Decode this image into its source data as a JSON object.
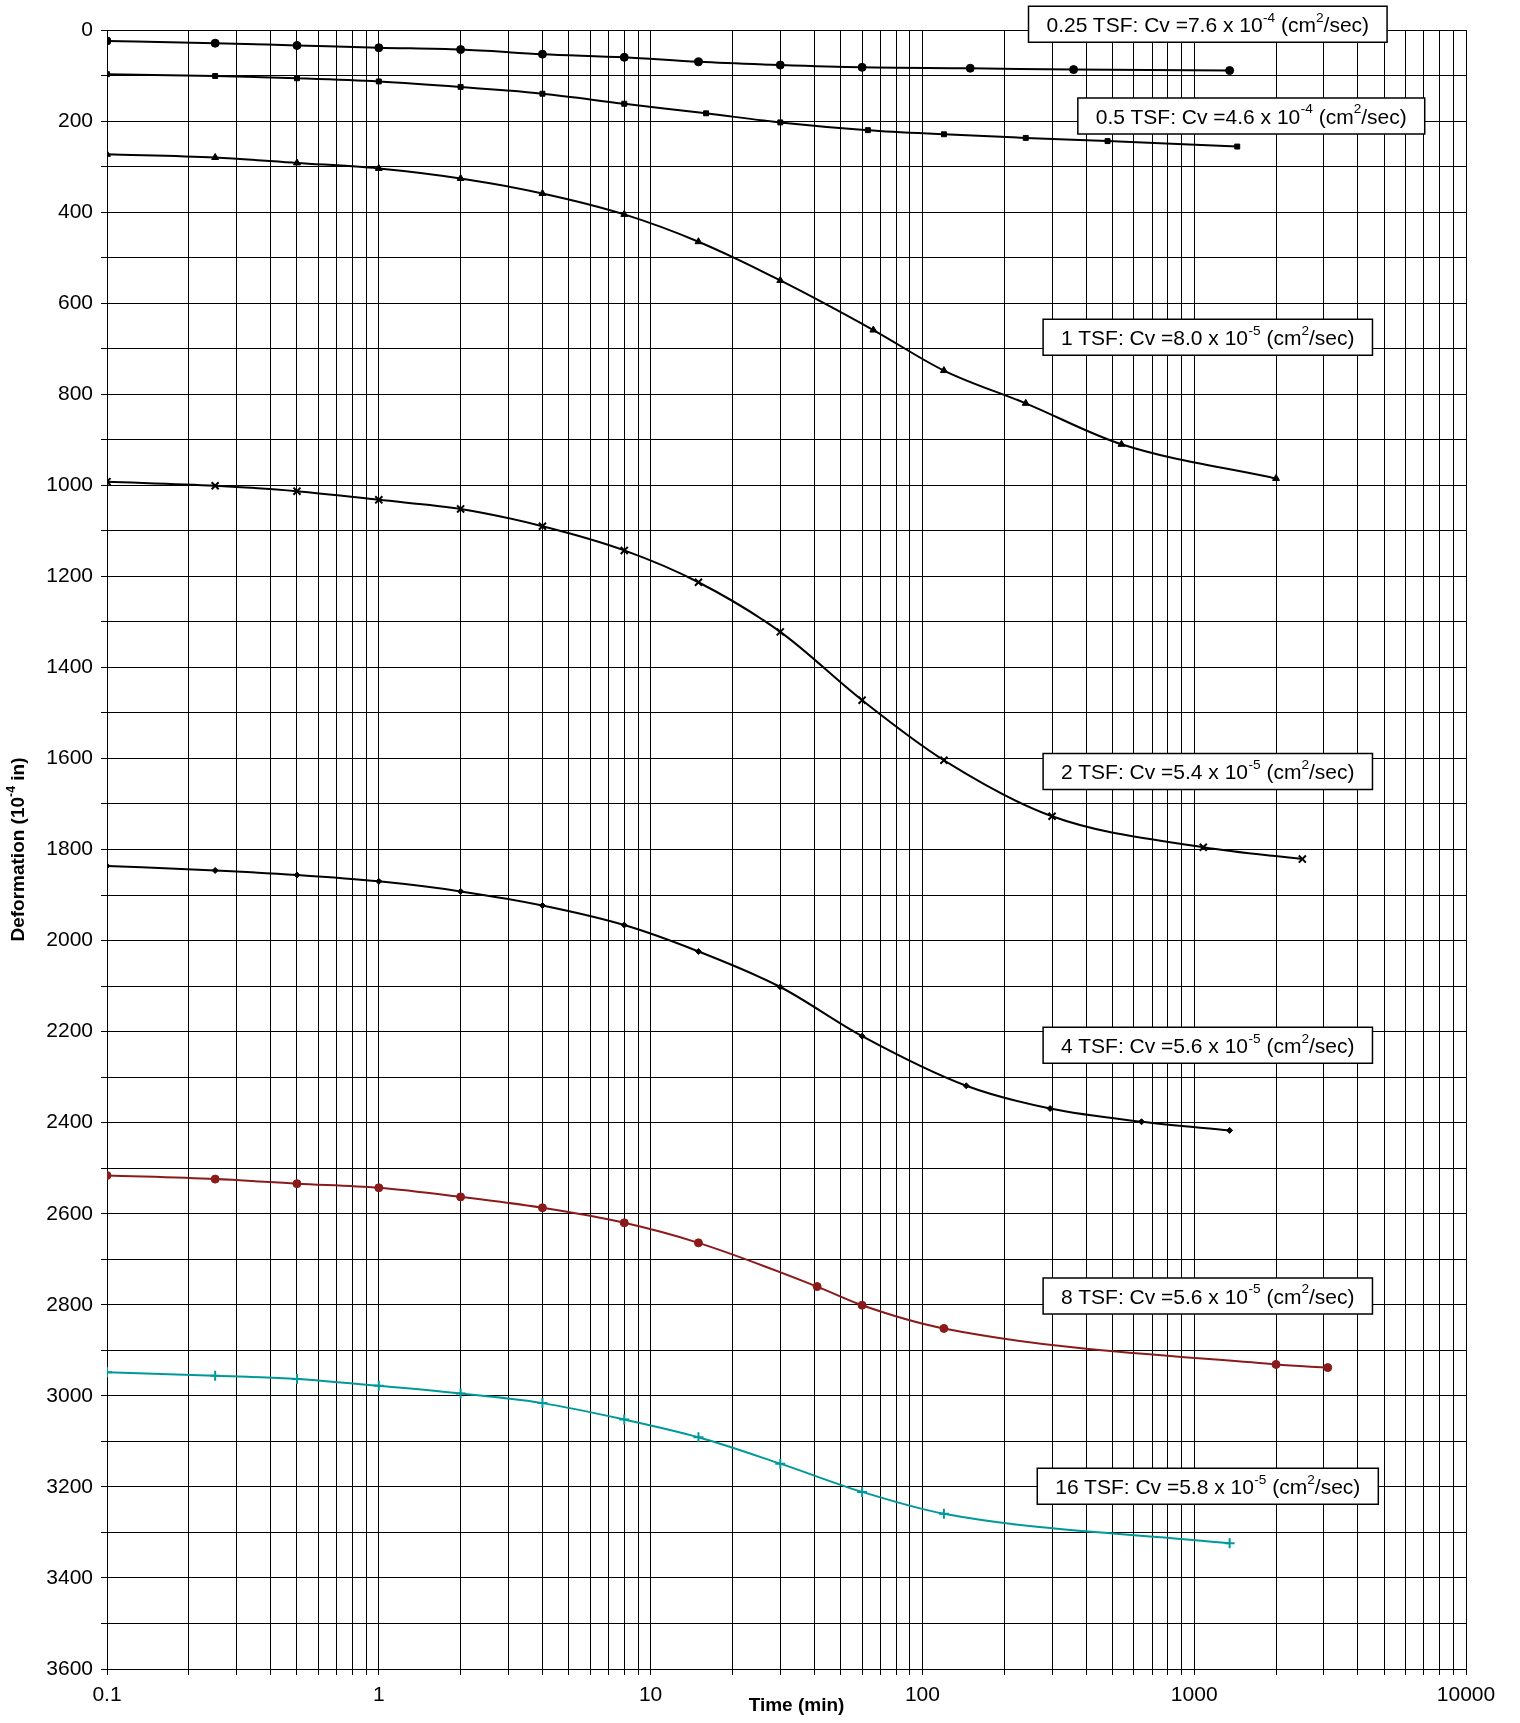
{
  "chart_data": {
    "type": "line",
    "xlabel": "Time (min)",
    "ylabel": "Deformation (10$^{-4}$ in)",
    "log": "x",
    "grid": true,
    "legend": false,
    "line_style": "solid",
    "xlim": [
      0.1,
      10000
    ],
    "ylim": [
      3600,
      0
    ],
    "xticks": [
      0.1,
      {
        "value": 0.2,
        "label": null
      },
      {
        "value": 0.3,
        "label": null
      },
      {
        "value": 0.4,
        "label": null
      },
      {
        "value": 0.5,
        "label": null
      },
      {
        "value": 0.6,
        "label": null
      },
      {
        "value": 0.7,
        "label": null
      },
      {
        "value": 0.8,
        "label": null
      },
      {
        "value": 0.9,
        "label": null
      },
      1,
      {
        "value": 2,
        "label": null
      },
      {
        "value": 3,
        "label": null
      },
      {
        "value": 4,
        "label": null
      },
      {
        "value": 5,
        "label": null
      },
      {
        "value": 6,
        "label": null
      },
      {
        "value": 7,
        "label": null
      },
      {
        "value": 8,
        "label": null
      },
      {
        "value": 9,
        "label": null
      },
      10,
      {
        "value": 20,
        "label": null
      },
      {
        "value": 30,
        "label": null
      },
      {
        "value": 40,
        "label": null
      },
      {
        "value": 50,
        "label": null
      },
      {
        "value": 60,
        "label": null
      },
      {
        "value": 70,
        "label": null
      },
      {
        "value": 80,
        "label": null
      },
      {
        "value": 90,
        "label": null
      },
      100,
      {
        "value": 200,
        "label": null
      },
      {
        "value": 300,
        "label": null
      },
      {
        "value": 400,
        "label": null
      },
      {
        "value": 500,
        "label": null
      },
      {
        "value": 600,
        "label": null
      },
      {
        "value": 700,
        "label": null
      },
      {
        "value": 800,
        "label": null
      },
      {
        "value": 900,
        "label": null
      },
      1000,
      {
        "value": 2000,
        "label": null
      },
      {
        "value": 3000,
        "label": null
      },
      {
        "value": 4000,
        "label": null
      },
      {
        "value": 5000,
        "label": null
      },
      {
        "value": 6000,
        "label": null
      },
      {
        "value": 7000,
        "label": null
      },
      {
        "value": 8000,
        "label": null
      },
      {
        "value": 9000,
        "label": null
      },
      10000
    ],
    "yticks": [
      0,
      {
        "value": 100,
        "label": null
      },
      200,
      {
        "value": 300,
        "label": null
      },
      400,
      {
        "value": 500,
        "label": null
      },
      600,
      {
        "value": 700,
        "label": null
      },
      800,
      {
        "value": 900,
        "label": null
      },
      1000,
      {
        "value": 1100,
        "label": null
      },
      1200,
      {
        "value": 1300,
        "label": null
      },
      1400,
      {
        "value": 1500,
        "label": null
      },
      1600,
      {
        "value": 1700,
        "label": null
      },
      1800,
      {
        "value": 1900,
        "label": null
      },
      2000,
      {
        "value": 2100,
        "label": null
      },
      2200,
      {
        "value": 2300,
        "label": null
      },
      2400,
      {
        "value": 2500,
        "label": null
      },
      2600,
      {
        "value": 2700,
        "label": null
      },
      2800,
      {
        "value": 2900,
        "label": null
      },
      3000,
      {
        "value": 3100,
        "label": null
      },
      3200,
      {
        "value": 3300,
        "label": null
      },
      3400,
      {
        "value": 3500,
        "label": null
      },
      3600
    ],
    "series": [
      {
        "name": "0.25 TSF: Cv =7.6 x 10$^{-4}$ (cm$^{2}$/sec)",
        "color": "#000000",
        "marker": "circle",
        "x": [
          0.1,
          0.25,
          0.5,
          1,
          2,
          4,
          8,
          15,
          30,
          60,
          150,
          360,
          1350
        ],
        "values": [
          24,
          29,
          34,
          39,
          43,
          53,
          60,
          70,
          77,
          82,
          84,
          87,
          89
        ]
      },
      {
        "name": "0.5 TSF: Cv =4.6 x 10$^{-4}$ (cm$^{2}$/sec)",
        "color": "#000000",
        "marker": "square",
        "x": [
          0.1,
          0.25,
          0.5,
          1,
          2,
          4,
          8,
          16,
          30,
          63,
          120,
          240,
          480,
          1440
        ],
        "values": [
          97,
          101,
          106,
          113,
          125,
          140,
          162,
          183,
          203,
          220,
          229,
          237,
          244,
          256
        ]
      },
      {
        "name": "1 TSF: Cv =8.0 x 10$^{-5}$ (cm$^{2}$/sec)",
        "color": "#000000",
        "marker": "triangle",
        "x": [
          0.1,
          0.25,
          0.5,
          1,
          2,
          4,
          8,
          15,
          30,
          66,
          120,
          240,
          540,
          2000
        ],
        "values": [
          273,
          280,
          292,
          304,
          326,
          359,
          405,
          465,
          550,
          659,
          748,
          820,
          910,
          985
        ]
      },
      {
        "name": "2 TSF: Cv =5.4 x 10$^{-5}$ (cm$^{2}$/sec)",
        "color": "#000000",
        "marker": "cross",
        "x": [
          0.1,
          0.25,
          0.5,
          1,
          2,
          4,
          8,
          15,
          30,
          60,
          120,
          300,
          1080,
          2500
        ],
        "values": [
          992,
          1001,
          1013,
          1032,
          1052,
          1090,
          1143,
          1213,
          1322,
          1472,
          1604,
          1727,
          1795,
          1821
        ]
      },
      {
        "name": "4 TSF: Cv =5.6 x 10$^{-5}$ (cm$^{2}$/sec)",
        "color": "#000000",
        "marker": "diamond",
        "x": [
          0.1,
          0.25,
          0.5,
          1,
          2,
          4,
          8,
          15,
          30,
          60,
          145,
          295,
          640,
          1350
        ],
        "values": [
          1836,
          1846,
          1856,
          1870,
          1892,
          1923,
          1966,
          2024,
          2102,
          2210,
          2319,
          2369,
          2398,
          2417
        ]
      },
      {
        "name": "8 TSF: Cv =5.6 x 10$^{-5}$ (cm$^{2}$/sec)",
        "color": "#8b1a1a",
        "marker": "circle",
        "x": [
          0.1,
          0.25,
          0.5,
          1,
          2,
          4,
          8,
          15,
          41,
          60,
          120,
          2000,
          3100
        ],
        "values": [
          2516,
          2524,
          2534,
          2543,
          2563,
          2587,
          2620,
          2664,
          2760,
          2801,
          2852,
          2931,
          2938
        ]
      },
      {
        "name": "16 TSF: Cv =5.8 x 10$^{-5}$ (cm$^{2}$/sec)",
        "color": "#009999",
        "marker": "plus",
        "x": [
          0.1,
          0.25,
          0.5,
          1,
          2,
          4,
          8,
          15,
          30,
          60,
          120,
          1350
        ],
        "values": [
          2948,
          2956,
          2963,
          2978,
          2995,
          3016,
          3052,
          3091,
          3149,
          3211,
          3259,
          3324
        ]
      }
    ]
  }
}
